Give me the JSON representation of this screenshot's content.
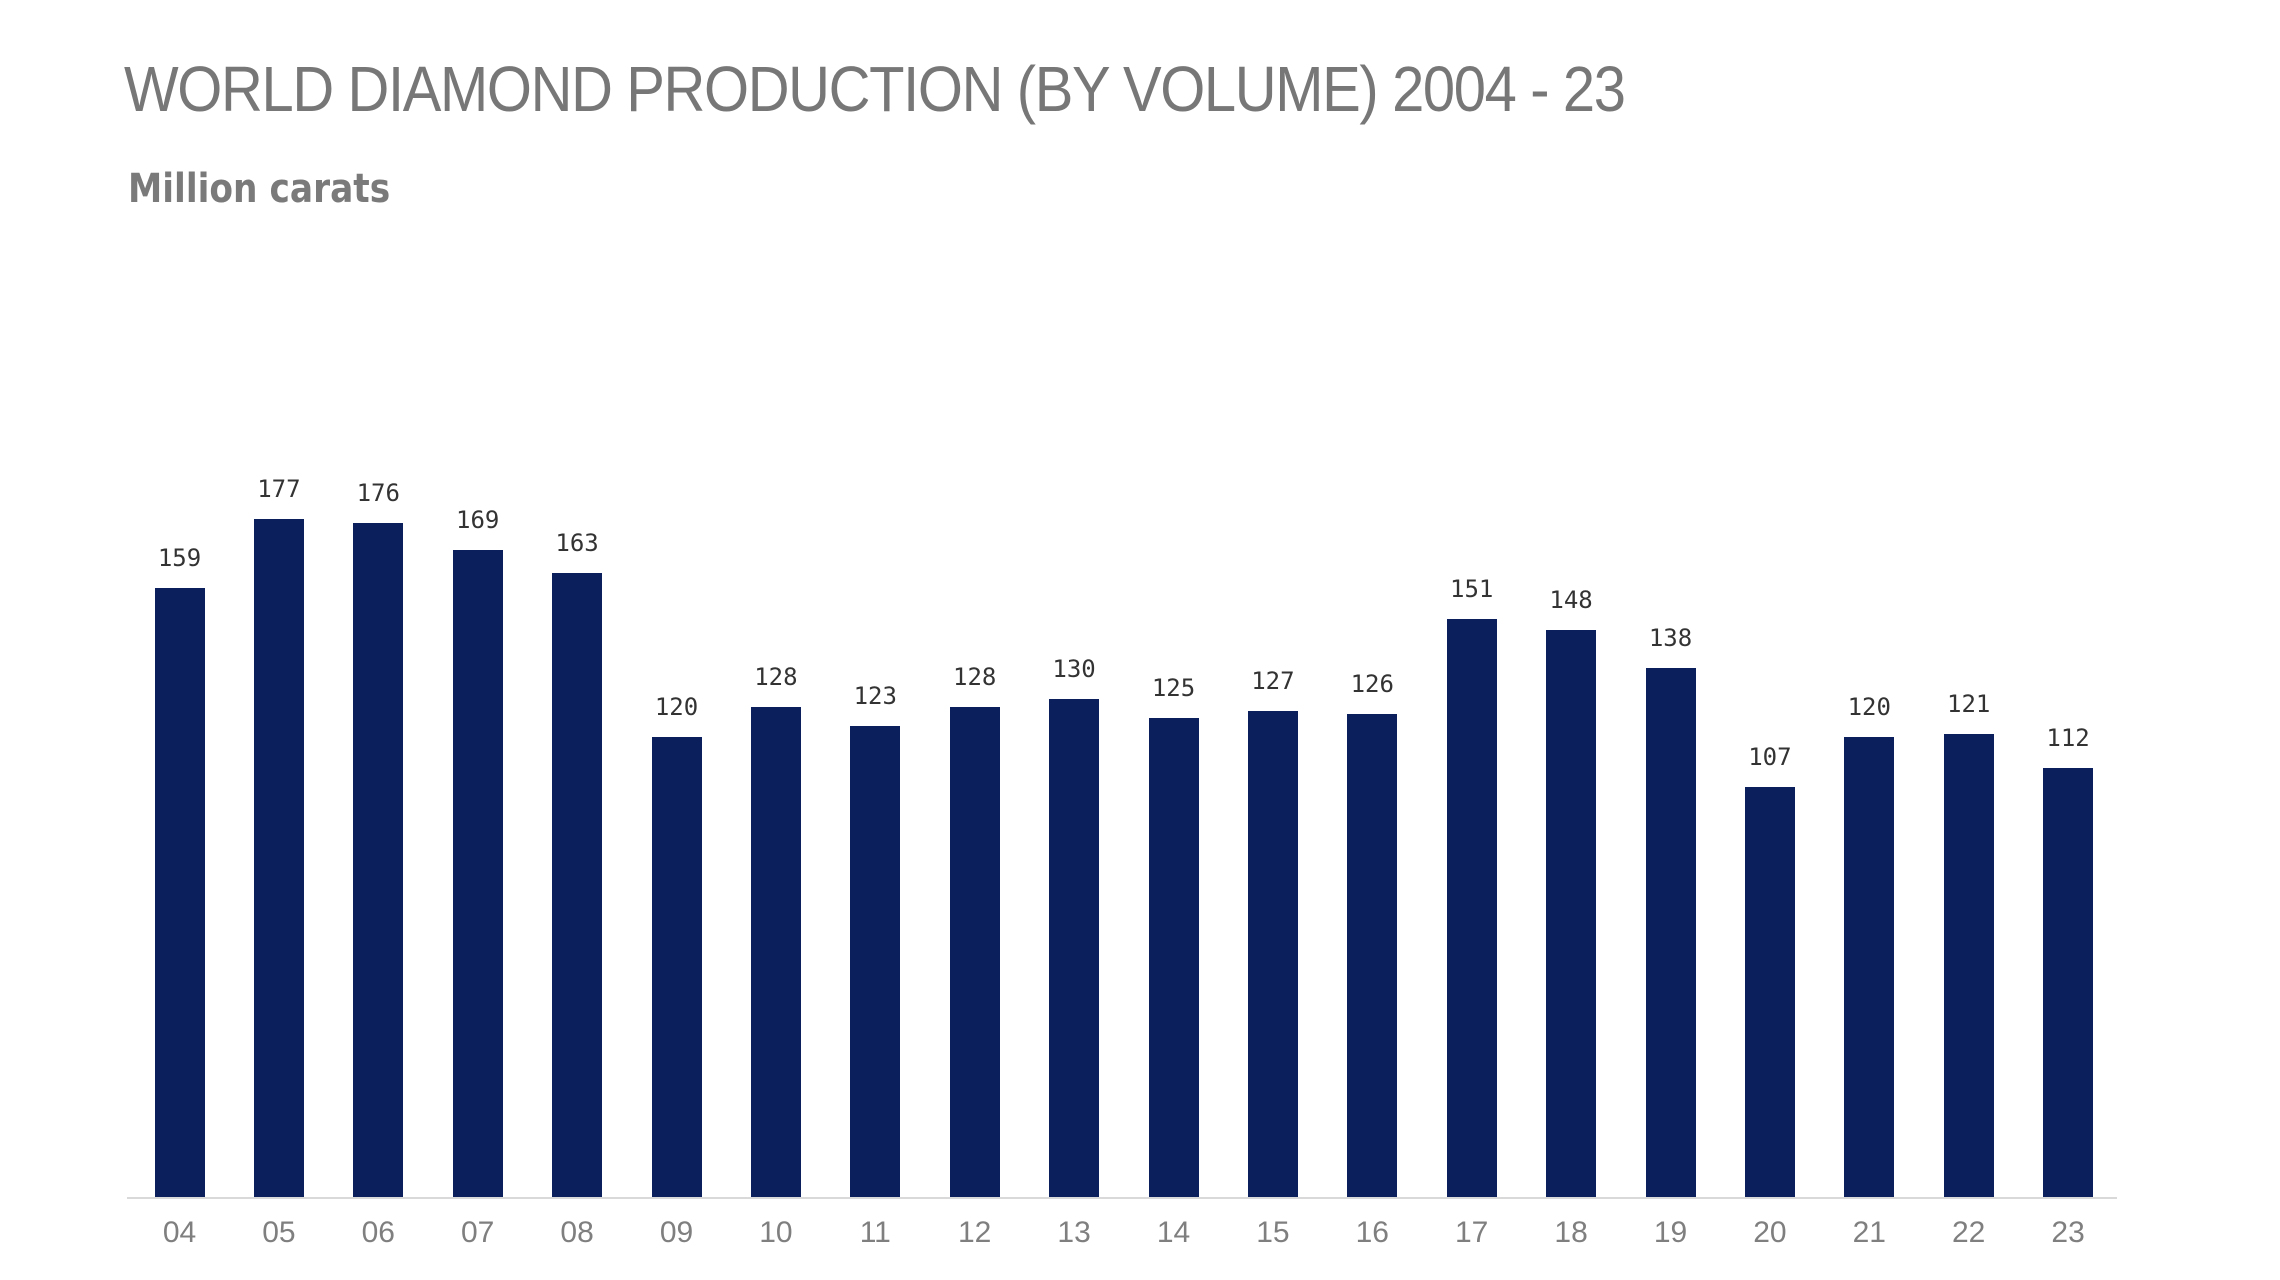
{
  "title": "WORLD DIAMOND PRODUCTION (BY VOLUME) 2004 - 23",
  "subtitle": "Million carats",
  "colors": {
    "bar": "#0b1f5c",
    "title": "#777777",
    "axis": "#d9d9d9",
    "label": "#333333",
    "tick": "#7f7f7f"
  },
  "chart_data": {
    "type": "bar",
    "title": "WORLD DIAMOND PRODUCTION (BY VOLUME) 2004 - 23",
    "subtitle": "Million carats",
    "xlabel": "",
    "ylabel": "Million carats",
    "categories": [
      "04",
      "05",
      "06",
      "07",
      "08",
      "09",
      "10",
      "11",
      "12",
      "13",
      "14",
      "15",
      "16",
      "17",
      "18",
      "19",
      "20",
      "21",
      "22",
      "23"
    ],
    "values": [
      159,
      177,
      176,
      169,
      163,
      120,
      128,
      123,
      128,
      130,
      125,
      127,
      126,
      151,
      148,
      138,
      107,
      120,
      121,
      112
    ],
    "ylim": [
      0,
      180
    ],
    "grid": false,
    "legend": null,
    "data_labels": true
  }
}
